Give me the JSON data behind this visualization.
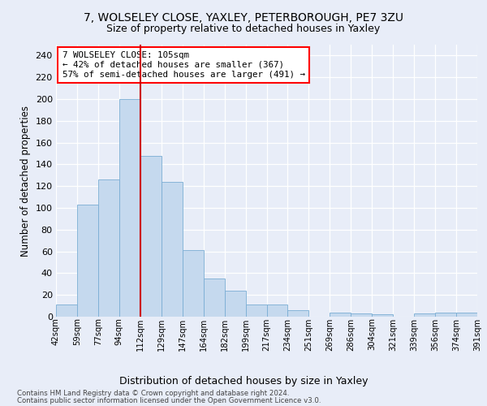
{
  "title1": "7, WOLSELEY CLOSE, YAXLEY, PETERBOROUGH, PE7 3ZU",
  "title2": "Size of property relative to detached houses in Yaxley",
  "xlabel": "Distribution of detached houses by size in Yaxley",
  "ylabel": "Number of detached properties",
  "bar_values": [
    11,
    103,
    126,
    200,
    148,
    124,
    61,
    35,
    24,
    11,
    11,
    6,
    0,
    4,
    3,
    2,
    0,
    3,
    4,
    4
  ],
  "bar_labels": [
    "42sqm",
    "59sqm",
    "77sqm",
    "94sqm",
    "112sqm",
    "129sqm",
    "147sqm",
    "164sqm",
    "182sqm",
    "199sqm",
    "217sqm",
    "234sqm",
    "251sqm",
    "269sqm",
    "286sqm",
    "304sqm",
    "321sqm",
    "339sqm",
    "356sqm",
    "374sqm",
    "391sqm"
  ],
  "bar_color": "#c5d9ee",
  "bar_edge_color": "#7aadd4",
  "vline_color": "#cc0000",
  "vline_x": 3.5,
  "annotation_line1": "7 WOLSELEY CLOSE: 105sqm",
  "annotation_line2": "← 42% of detached houses are smaller (367)",
  "annotation_line3": "57% of semi-detached houses are larger (491) →",
  "ylim": [
    0,
    250
  ],
  "yticks": [
    0,
    20,
    40,
    60,
    80,
    100,
    120,
    140,
    160,
    180,
    200,
    220,
    240
  ],
  "bg_color": "#e8edf8",
  "grid_color": "white",
  "footer1": "Contains HM Land Registry data © Crown copyright and database right 2024.",
  "footer2": "Contains public sector information licensed under the Open Government Licence v3.0."
}
